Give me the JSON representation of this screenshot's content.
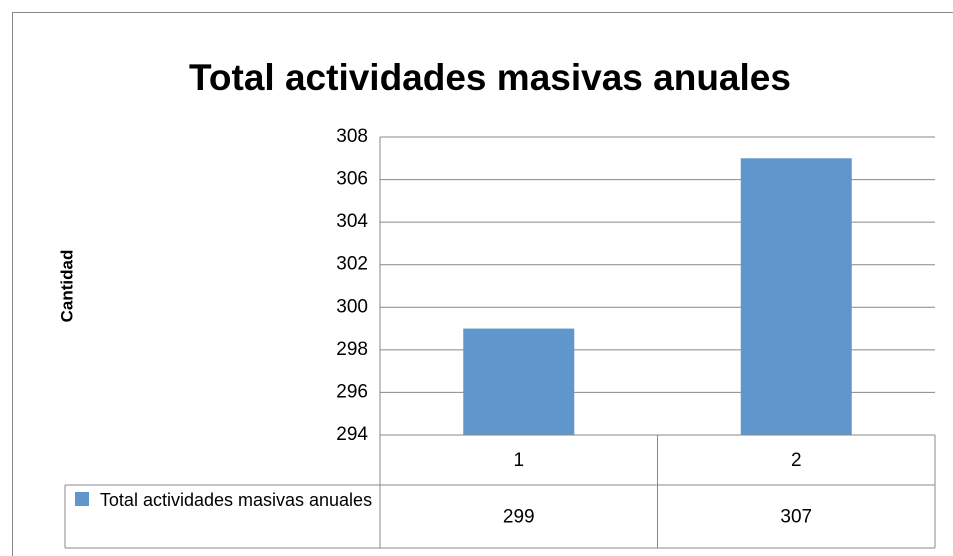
{
  "chart_data": {
    "type": "bar",
    "title": "Total actividades masivas anuales",
    "y_label": "Cantidad",
    "categories": [
      "1",
      "2"
    ],
    "series": [
      {
        "name": "Total actividades masivas anuales",
        "color": "#5f96cb",
        "values": [
          299,
          307
        ]
      }
    ],
    "ylim": [
      294,
      308
    ],
    "yticks": [
      294,
      296,
      298,
      300,
      302,
      304,
      306,
      308
    ],
    "grid": true,
    "data_table": true
  }
}
